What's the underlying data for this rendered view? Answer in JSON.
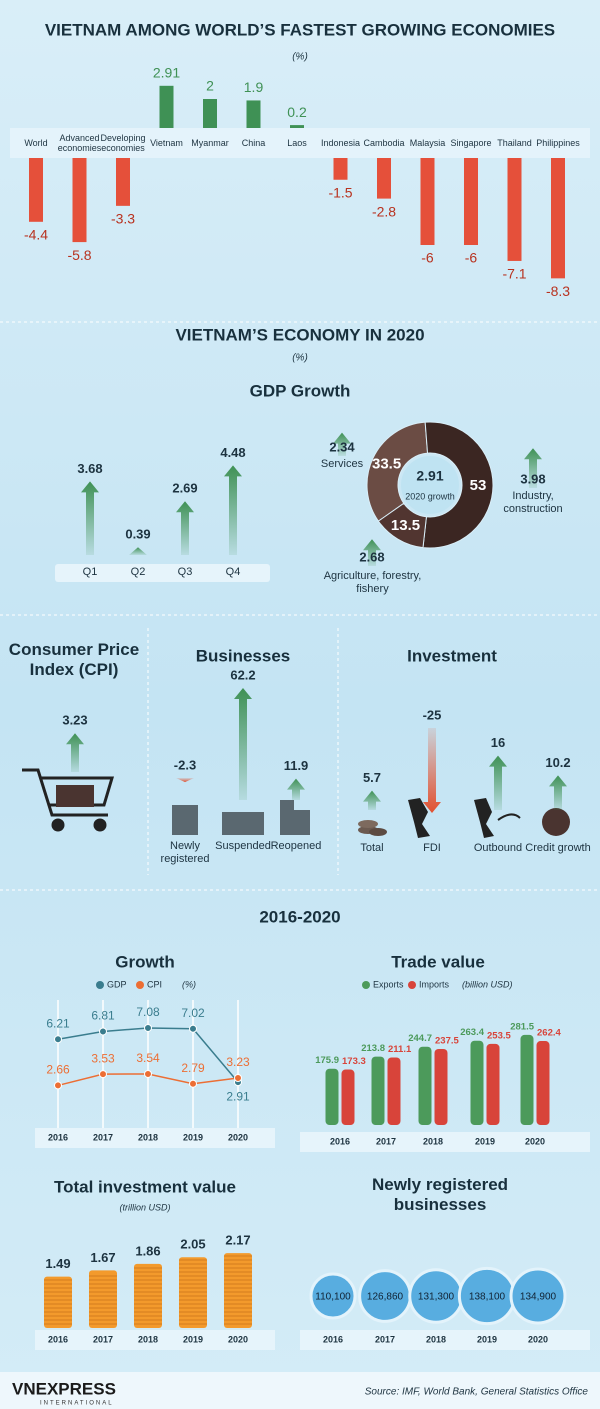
{
  "chart_data": [
    {
      "type": "bar",
      "title": "VIETNAM AMONG WORLD’S FASTEST GROWING ECONOMIES",
      "subtitle": "(%)",
      "categories": [
        "World",
        "Advanced economies",
        "Developing economies",
        "Vietnam",
        "Myanmar",
        "China",
        "Laos",
        "Indonesia",
        "Cambodia",
        "Malaysia",
        "Singapore",
        "Thailand",
        "Philippines"
      ],
      "values": [
        -4.4,
        -5.8,
        -3.3,
        2.91,
        2,
        1.9,
        0.2,
        -1.5,
        -2.8,
        -6,
        -6,
        -7.1,
        -8.3
      ],
      "positive_color": "#3f9155",
      "negative_color": "#e5503a"
    },
    {
      "type": "arrow",
      "title": "GDP Growth",
      "categories": [
        "Q1",
        "Q2",
        "Q3",
        "Q4"
      ],
      "values": [
        3.68,
        0.39,
        2.69,
        4.48
      ],
      "color": "#3f9155"
    },
    {
      "type": "donut",
      "center_value": 2.91,
      "center_label": "2020 growth",
      "categories": [
        "Services",
        "Industry, construction",
        "Agriculture, forestry, fishery"
      ],
      "values": [
        33.5,
        53,
        13.5
      ],
      "growth": [
        2.34,
        3.98,
        2.68
      ],
      "colors": [
        "#6b4c44",
        "#3b2622",
        "#513530"
      ],
      "growth_color": "#3f9155"
    },
    {
      "type": "arrow",
      "title": "Consumer Price Index (CPI)",
      "values": [
        3.23
      ],
      "color": "#3f9155"
    },
    {
      "type": "arrow",
      "title": "Businesses",
      "categories": [
        "Newly registered",
        "Suspended",
        "Reopened"
      ],
      "values": [
        -2.3,
        62.2,
        11.9
      ],
      "color": "#3f9155",
      "negative_color": "#e2502f"
    },
    {
      "type": "arrow",
      "title": "Investment",
      "categories": [
        "Total",
        "FDI",
        "Outbound",
        "Credit growth"
      ],
      "values": [
        5.7,
        -25,
        16,
        10.2
      ],
      "color": "#3f9155",
      "negative_color": "#e2502f"
    },
    {
      "type": "line",
      "title": "Growth",
      "unit": "(%)",
      "categories": [
        "2016",
        "2017",
        "2018",
        "2019",
        "2020"
      ],
      "series": [
        {
          "name": "GDP",
          "color": "#3a7d8e",
          "values": [
            6.21,
            6.81,
            7.08,
            7.02,
            2.91
          ]
        },
        {
          "name": "CPI",
          "color": "#ec6e34",
          "values": [
            2.66,
            3.53,
            3.54,
            2.79,
            3.23
          ]
        }
      ]
    },
    {
      "type": "bar",
      "title": "Trade value",
      "unit": "(billion USD)",
      "categories": [
        "2016",
        "2017",
        "2018",
        "2019",
        "2020"
      ],
      "series": [
        {
          "name": "Exports",
          "color": "#4c9a5b",
          "values": [
            175.9,
            213.8,
            244.7,
            263.4,
            281.5
          ]
        },
        {
          "name": "Imports",
          "color": "#d8443a",
          "values": [
            173.3,
            211.1,
            237.5,
            253.5,
            262.4
          ]
        }
      ]
    },
    {
      "type": "bar",
      "title": "Total investment value",
      "unit": "(trillion USD)",
      "categories": [
        "2016",
        "2017",
        "2018",
        "2019",
        "2020"
      ],
      "values": [
        1.49,
        1.67,
        1.86,
        2.05,
        2.17
      ],
      "color": "#f39a2c"
    },
    {
      "type": "bubble",
      "title": "Newly registered businesses",
      "categories": [
        "2016",
        "2017",
        "2018",
        "2019",
        "2020"
      ],
      "values": [
        110100,
        126860,
        131300,
        138100,
        134900
      ],
      "value_labels": [
        "110,100",
        "126,860",
        "131,300",
        "138,100",
        "134,900"
      ],
      "color": "#58ade0"
    }
  ],
  "section_titles": [
    "VIETNAM’S ECONOMY IN 2020",
    "2016-2020"
  ],
  "section_unit": "(%)",
  "footer": {
    "logo": "VNEXPRESS",
    "logo_sub": "INTERNATIONAL",
    "source": "Source: IMF, World Bank, General Statistics Office"
  }
}
